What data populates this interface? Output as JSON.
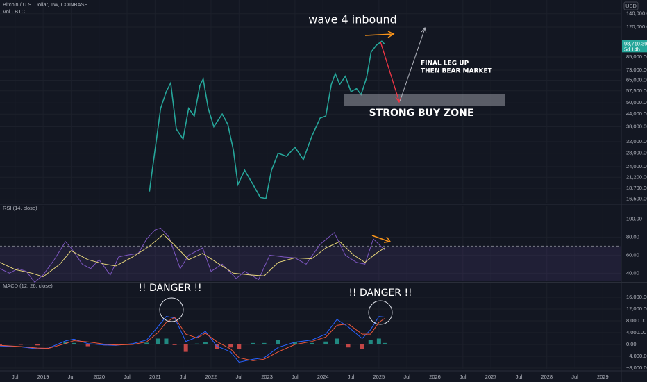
{
  "chart_data": [
    {
      "type": "line",
      "title": "Bitcoin / U.S. Dollar, 1W, COINBASE",
      "subtitle": "Vol · BTC",
      "currency": "USD",
      "log_scale": true,
      "grid": true,
      "ylim": [
        15800,
        164000
      ],
      "yticks": [
        {
          "value": 140000,
          "label": "140,000.00"
        },
        {
          "value": 120000,
          "label": "120,000.00"
        },
        {
          "value": 85000,
          "label": "85,000.00"
        },
        {
          "value": 73000,
          "label": "73,000.00"
        },
        {
          "value": 65000,
          "label": "65,000.00"
        },
        {
          "value": 57500,
          "label": "57,500.00"
        },
        {
          "value": 50000,
          "label": "50,000.00"
        },
        {
          "value": 44000,
          "label": "44,000.00"
        },
        {
          "value": 38000,
          "label": "38,000.00"
        },
        {
          "value": 32000,
          "label": "32,000.00"
        },
        {
          "value": 28000,
          "label": "28,000.00"
        },
        {
          "value": 24000,
          "label": "24,000.00"
        },
        {
          "value": 21200,
          "label": "21,200.00"
        },
        {
          "value": 18700,
          "label": "18,700.00"
        },
        {
          "value": 16500,
          "label": "16,500.00"
        }
      ],
      "last_price": {
        "value": 98710.39,
        "label": "98,710.39"
      },
      "countdown": "5d 14h",
      "annotations": [
        "wave 4 inbound",
        "FINAL LEG UP",
        "THEN BEAR MARKET",
        "STRONG BUY ZONE"
      ],
      "series": [
        {
          "color": "#26a69a",
          "x": [
            2020.9,
            2020.95,
            2021.0,
            2021.1,
            2021.2,
            2021.28,
            2021.38,
            2021.5,
            2021.6,
            2021.7,
            2021.8,
            2021.86,
            2021.95,
            2022.05,
            2022.2,
            2022.3,
            2022.4,
            2022.48,
            2022.6,
            2022.75,
            2022.88,
            2022.98,
            2023.08,
            2023.2,
            2023.35,
            2023.5,
            2023.65,
            2023.8,
            2023.95,
            2024.05,
            2024.15,
            2024.22,
            2024.3,
            2024.4,
            2024.5,
            2024.6,
            2024.68,
            2024.78,
            2024.86,
            2024.95,
            2025.05,
            2025.1
          ],
          "values": [
            18000,
            23000,
            29000,
            47000,
            57000,
            63000,
            37000,
            33000,
            47000,
            43000,
            61000,
            66000,
            47000,
            38000,
            44000,
            39000,
            29000,
            19500,
            23000,
            19500,
            16800,
            16600,
            23000,
            28000,
            27000,
            30000,
            26000,
            34000,
            42000,
            43000,
            62000,
            70000,
            62000,
            68000,
            57000,
            59000,
            55000,
            67000,
            90000,
            97000,
            102000,
            98710
          ]
        }
      ]
    },
    {
      "type": "line",
      "title": "RSI (14, close)",
      "ylim": [
        31,
        115
      ],
      "band": [
        30,
        70
      ],
      "grid": true,
      "yticks": [
        {
          "value": 100,
          "label": "100.00"
        },
        {
          "value": 80,
          "label": "80.00"
        },
        {
          "value": 60,
          "label": "60.00"
        },
        {
          "value": 40,
          "label": "40.00"
        }
      ],
      "series": [
        {
          "color": "#7e57c2",
          "x": [
            2018.23,
            2018.4,
            2018.55,
            2018.7,
            2018.85,
            2019.0,
            2019.2,
            2019.4,
            2019.5,
            2019.7,
            2019.85,
            2020.0,
            2020.2,
            2020.35,
            2020.5,
            2020.7,
            2020.85,
            2021.0,
            2021.1,
            2021.25,
            2021.45,
            2021.6,
            2021.85,
            2022.0,
            2022.2,
            2022.45,
            2022.6,
            2022.85,
            2023.05,
            2023.3,
            2023.5,
            2023.7,
            2023.95,
            2024.2,
            2024.4,
            2024.6,
            2024.75,
            2024.9,
            2025.1
          ],
          "values": [
            45,
            40,
            45,
            42,
            30,
            38,
            55,
            75,
            68,
            50,
            45,
            55,
            38,
            58,
            60,
            62,
            78,
            88,
            90,
            80,
            45,
            60,
            68,
            42,
            50,
            34,
            42,
            33,
            60,
            58,
            57,
            50,
            72,
            85,
            60,
            52,
            50,
            78,
            66
          ]
        },
        {
          "color": "#e8d77a",
          "x": [
            2018.23,
            2018.5,
            2018.8,
            2019.0,
            2019.3,
            2019.5,
            2019.8,
            2020.1,
            2020.3,
            2020.6,
            2020.9,
            2021.15,
            2021.4,
            2021.6,
            2021.85,
            2022.1,
            2022.4,
            2022.7,
            2022.95,
            2023.2,
            2023.5,
            2023.8,
            2024.05,
            2024.3,
            2024.55,
            2024.75,
            2024.95,
            2025.1
          ],
          "values": [
            52,
            44,
            40,
            36,
            50,
            65,
            55,
            50,
            48,
            58,
            70,
            83,
            68,
            55,
            62,
            52,
            40,
            38,
            37,
            52,
            57,
            56,
            68,
            75,
            60,
            52,
            62,
            68
          ]
        }
      ]
    },
    {
      "type": "macd",
      "title": "MACD (12, 26, close)",
      "ylim": [
        -8470,
        20700
      ],
      "grid": true,
      "annotations": [
        "!! DANGER !!",
        "!! DANGER !!"
      ],
      "yticks": [
        {
          "value": 16000,
          "label": "16,000.00"
        },
        {
          "value": 12000,
          "label": "12,000.00"
        },
        {
          "value": 8000,
          "label": "8,000.00"
        },
        {
          "value": 4000,
          "label": "4,000.00"
        },
        {
          "value": 0,
          "label": "0.00"
        },
        {
          "value": -4000,
          "label": "−4,000.00"
        },
        {
          "value": -8000,
          "label": "−8,000.00"
        }
      ],
      "xlim": [
        2018.23,
        2029.33
      ],
      "xticks": [
        {
          "value": 2018.5,
          "label": "Jul"
        },
        2019,
        {
          "value": 2019.5,
          "label": "Jul"
        },
        2020,
        {
          "value": 2020.5,
          "label": "Jul"
        },
        2021,
        {
          "value": 2021.5,
          "label": "Jul"
        },
        2022,
        {
          "value": 2022.5,
          "label": "Jul"
        },
        2023,
        {
          "value": 2023.5,
          "label": "Jul"
        },
        2024,
        {
          "value": 2024.5,
          "label": "Jul"
        },
        2025,
        {
          "value": 2025.5,
          "label": "Jul"
        },
        2026,
        {
          "value": 2026.5,
          "label": "Jul"
        },
        2027,
        {
          "value": 2027.5,
          "label": "Jul"
        },
        2028,
        {
          "value": 2028.5,
          "label": "Jul"
        },
        2029
      ],
      "x": [
        2018.23,
        2018.6,
        2018.9,
        2019.1,
        2019.4,
        2019.55,
        2019.8,
        2020.1,
        2020.3,
        2020.6,
        2020.85,
        2021.05,
        2021.2,
        2021.35,
        2021.55,
        2021.75,
        2021.9,
        2022.1,
        2022.35,
        2022.5,
        2022.75,
        2022.95,
        2023.2,
        2023.5,
        2023.8,
        2024.05,
        2024.25,
        2024.45,
        2024.7,
        2024.85,
        2025.0,
        2025.1
      ],
      "histogram": {
        "colors": [
          "#26a69a",
          "#ef5350"
        ],
        "values": [
          -200,
          -100,
          -300,
          100,
          900,
          500,
          -600,
          -300,
          -100,
          300,
          600,
          2000,
          2000,
          -200,
          -2500,
          300,
          700,
          -1500,
          -1000,
          -1500,
          500,
          500,
          1500,
          800,
          500,
          1000,
          2000,
          -1000,
          -1500,
          1500,
          2000,
          500
        ]
      },
      "series": [
        {
          "color": "#2962ff",
          "values": [
            -500,
            -800,
            -1500,
            -1200,
            1200,
            1800,
            300,
            -200,
            -300,
            300,
            1500,
            6000,
            9500,
            9000,
            1000,
            2500,
            4500,
            -500,
            -2500,
            -6000,
            -5000,
            -4500,
            -1000,
            800,
            1500,
            3500,
            8500,
            6000,
            2000,
            5000,
            9500,
            9300
          ]
        },
        {
          "color": "#f0583a",
          "values": [
            -300,
            -700,
            -1200,
            -1300,
            300,
            1300,
            900,
            100,
            -200,
            0,
            900,
            4000,
            7500,
            9200,
            3500,
            2200,
            3800,
            1000,
            -1500,
            -4500,
            -5500,
            -5000,
            -2500,
            0,
            1000,
            2500,
            6500,
            7000,
            3500,
            3500,
            7500,
            8800
          ]
        }
      ]
    }
  ]
}
